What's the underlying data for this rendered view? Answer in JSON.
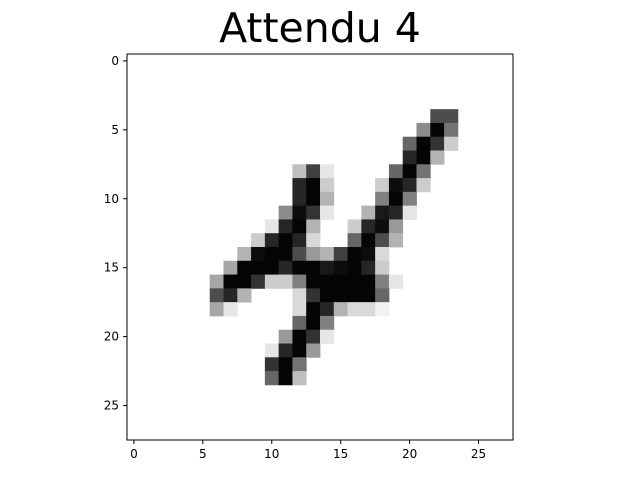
{
  "chart_data": {
    "type": "heatmap",
    "title": "Attendu 4",
    "colormap": "gray_r",
    "grid": false,
    "xlim": [
      -0.5,
      27.5
    ],
    "ylim": [
      27.5,
      -0.5
    ],
    "x_ticks": [
      0,
      5,
      10,
      15,
      20,
      25
    ],
    "y_ticks": [
      0,
      5,
      10,
      15,
      20,
      25
    ],
    "x_tick_labels": [
      "0",
      "5",
      "10",
      "15",
      "20",
      "25"
    ],
    "y_tick_labels": [
      "0",
      "5",
      "10",
      "15",
      "20",
      "25"
    ],
    "size": [
      28,
      28
    ],
    "pixels": [
      {
        "row": 4,
        "col": 22,
        "v": 0.7
      },
      {
        "row": 4,
        "col": 23,
        "v": 0.7
      },
      {
        "row": 5,
        "col": 21,
        "v": 0.45
      },
      {
        "row": 5,
        "col": 22,
        "v": 0.98
      },
      {
        "row": 5,
        "col": 23,
        "v": 0.55
      },
      {
        "row": 6,
        "col": 20,
        "v": 0.6
      },
      {
        "row": 6,
        "col": 21,
        "v": 0.98
      },
      {
        "row": 6,
        "col": 22,
        "v": 0.8
      },
      {
        "row": 6,
        "col": 23,
        "v": 0.2
      },
      {
        "row": 7,
        "col": 20,
        "v": 0.85
      },
      {
        "row": 7,
        "col": 21,
        "v": 0.98
      },
      {
        "row": 7,
        "col": 22,
        "v": 0.3
      },
      {
        "row": 8,
        "col": 12,
        "v": 0.25
      },
      {
        "row": 8,
        "col": 13,
        "v": 0.75
      },
      {
        "row": 8,
        "col": 14,
        "v": 0.1
      },
      {
        "row": 8,
        "col": 19,
        "v": 0.6
      },
      {
        "row": 8,
        "col": 20,
        "v": 0.98
      },
      {
        "row": 8,
        "col": 21,
        "v": 0.55
      },
      {
        "row": 9,
        "col": 12,
        "v": 0.85
      },
      {
        "row": 9,
        "col": 13,
        "v": 0.98
      },
      {
        "row": 9,
        "col": 14,
        "v": 0.2
      },
      {
        "row": 9,
        "col": 18,
        "v": 0.2
      },
      {
        "row": 9,
        "col": 19,
        "v": 0.95
      },
      {
        "row": 9,
        "col": 20,
        "v": 0.85
      },
      {
        "row": 9,
        "col": 21,
        "v": 0.2
      },
      {
        "row": 10,
        "col": 12,
        "v": 0.85
      },
      {
        "row": 10,
        "col": 13,
        "v": 0.98
      },
      {
        "row": 10,
        "col": 14,
        "v": 0.3
      },
      {
        "row": 10,
        "col": 18,
        "v": 0.5
      },
      {
        "row": 10,
        "col": 19,
        "v": 0.98
      },
      {
        "row": 10,
        "col": 20,
        "v": 0.5
      },
      {
        "row": 11,
        "col": 11,
        "v": 0.45
      },
      {
        "row": 11,
        "col": 12,
        "v": 0.95
      },
      {
        "row": 11,
        "col": 13,
        "v": 0.8
      },
      {
        "row": 11,
        "col": 14,
        "v": 0.1
      },
      {
        "row": 11,
        "col": 17,
        "v": 0.3
      },
      {
        "row": 11,
        "col": 18,
        "v": 0.9
      },
      {
        "row": 11,
        "col": 19,
        "v": 0.85
      },
      {
        "row": 11,
        "col": 20,
        "v": 0.1
      },
      {
        "row": 12,
        "col": 10,
        "v": 0.1
      },
      {
        "row": 12,
        "col": 11,
        "v": 0.85
      },
      {
        "row": 12,
        "col": 12,
        "v": 0.98
      },
      {
        "row": 12,
        "col": 13,
        "v": 0.3
      },
      {
        "row": 12,
        "col": 16,
        "v": 0.2
      },
      {
        "row": 12,
        "col": 17,
        "v": 0.85
      },
      {
        "row": 12,
        "col": 18,
        "v": 0.95
      },
      {
        "row": 12,
        "col": 19,
        "v": 0.4
      },
      {
        "row": 13,
        "col": 9,
        "v": 0.2
      },
      {
        "row": 13,
        "col": 10,
        "v": 0.85
      },
      {
        "row": 13,
        "col": 11,
        "v": 0.98
      },
      {
        "row": 13,
        "col": 12,
        "v": 0.85
      },
      {
        "row": 13,
        "col": 13,
        "v": 0.15
      },
      {
        "row": 13,
        "col": 16,
        "v": 0.6
      },
      {
        "row": 13,
        "col": 17,
        "v": 0.98
      },
      {
        "row": 13,
        "col": 18,
        "v": 0.7
      },
      {
        "row": 13,
        "col": 19,
        "v": 0.3
      },
      {
        "row": 14,
        "col": 8,
        "v": 0.3
      },
      {
        "row": 14,
        "col": 9,
        "v": 0.95
      },
      {
        "row": 14,
        "col": 10,
        "v": 0.98
      },
      {
        "row": 14,
        "col": 11,
        "v": 0.98
      },
      {
        "row": 14,
        "col": 12,
        "v": 0.7
      },
      {
        "row": 14,
        "col": 13,
        "v": 0.4
      },
      {
        "row": 14,
        "col": 14,
        "v": 0.3
      },
      {
        "row": 14,
        "col": 15,
        "v": 0.75
      },
      {
        "row": 14,
        "col": 16,
        "v": 0.98
      },
      {
        "row": 14,
        "col": 17,
        "v": 0.95
      },
      {
        "row": 14,
        "col": 18,
        "v": 0.15
      },
      {
        "row": 15,
        "col": 7,
        "v": 0.35
      },
      {
        "row": 15,
        "col": 8,
        "v": 0.98
      },
      {
        "row": 15,
        "col": 9,
        "v": 0.98
      },
      {
        "row": 15,
        "col": 10,
        "v": 0.98
      },
      {
        "row": 15,
        "col": 11,
        "v": 0.85
      },
      {
        "row": 15,
        "col": 12,
        "v": 0.98
      },
      {
        "row": 15,
        "col": 13,
        "v": 0.98
      },
      {
        "row": 15,
        "col": 14,
        "v": 0.9
      },
      {
        "row": 15,
        "col": 15,
        "v": 0.95
      },
      {
        "row": 15,
        "col": 16,
        "v": 0.98
      },
      {
        "row": 15,
        "col": 17,
        "v": 0.85
      },
      {
        "row": 15,
        "col": 18,
        "v": 0.2
      },
      {
        "row": 16,
        "col": 6,
        "v": 0.35
      },
      {
        "row": 16,
        "col": 7,
        "v": 0.98
      },
      {
        "row": 16,
        "col": 8,
        "v": 0.98
      },
      {
        "row": 16,
        "col": 9,
        "v": 0.8
      },
      {
        "row": 16,
        "col": 10,
        "v": 0.2
      },
      {
        "row": 16,
        "col": 11,
        "v": 0.2
      },
      {
        "row": 16,
        "col": 12,
        "v": 0.5
      },
      {
        "row": 16,
        "col": 13,
        "v": 0.98
      },
      {
        "row": 16,
        "col": 14,
        "v": 0.98
      },
      {
        "row": 16,
        "col": 15,
        "v": 0.98
      },
      {
        "row": 16,
        "col": 16,
        "v": 0.98
      },
      {
        "row": 16,
        "col": 17,
        "v": 0.98
      },
      {
        "row": 16,
        "col": 18,
        "v": 0.5
      },
      {
        "row": 16,
        "col": 19,
        "v": 0.1
      },
      {
        "row": 17,
        "col": 6,
        "v": 0.7
      },
      {
        "row": 17,
        "col": 7,
        "v": 0.85
      },
      {
        "row": 17,
        "col": 8,
        "v": 0.3
      },
      {
        "row": 17,
        "col": 12,
        "v": 0.15
      },
      {
        "row": 17,
        "col": 13,
        "v": 0.8
      },
      {
        "row": 17,
        "col": 14,
        "v": 0.98
      },
      {
        "row": 17,
        "col": 15,
        "v": 0.98
      },
      {
        "row": 17,
        "col": 16,
        "v": 0.98
      },
      {
        "row": 17,
        "col": 17,
        "v": 0.98
      },
      {
        "row": 17,
        "col": 18,
        "v": 0.6
      },
      {
        "row": 18,
        "col": 6,
        "v": 0.35
      },
      {
        "row": 18,
        "col": 7,
        "v": 0.1
      },
      {
        "row": 18,
        "col": 12,
        "v": 0.15
      },
      {
        "row": 18,
        "col": 13,
        "v": 0.98
      },
      {
        "row": 18,
        "col": 14,
        "v": 0.85
      },
      {
        "row": 18,
        "col": 15,
        "v": 0.3
      },
      {
        "row": 18,
        "col": 16,
        "v": 0.15
      },
      {
        "row": 18,
        "col": 17,
        "v": 0.15
      },
      {
        "row": 18,
        "col": 18,
        "v": 0.05
      },
      {
        "row": 19,
        "col": 12,
        "v": 0.6
      },
      {
        "row": 19,
        "col": 13,
        "v": 0.98
      },
      {
        "row": 19,
        "col": 14,
        "v": 0.5
      },
      {
        "row": 20,
        "col": 11,
        "v": 0.4
      },
      {
        "row": 20,
        "col": 12,
        "v": 0.98
      },
      {
        "row": 20,
        "col": 13,
        "v": 0.8
      },
      {
        "row": 20,
        "col": 14,
        "v": 0.1
      },
      {
        "row": 21,
        "col": 10,
        "v": 0.1
      },
      {
        "row": 21,
        "col": 11,
        "v": 0.85
      },
      {
        "row": 21,
        "col": 12,
        "v": 0.98
      },
      {
        "row": 21,
        "col": 13,
        "v": 0.4
      },
      {
        "row": 22,
        "col": 10,
        "v": 0.8
      },
      {
        "row": 22,
        "col": 11,
        "v": 0.98
      },
      {
        "row": 22,
        "col": 12,
        "v": 0.55
      },
      {
        "row": 23,
        "col": 10,
        "v": 0.6
      },
      {
        "row": 23,
        "col": 11,
        "v": 0.98
      },
      {
        "row": 23,
        "col": 12,
        "v": 0.25
      }
    ]
  }
}
